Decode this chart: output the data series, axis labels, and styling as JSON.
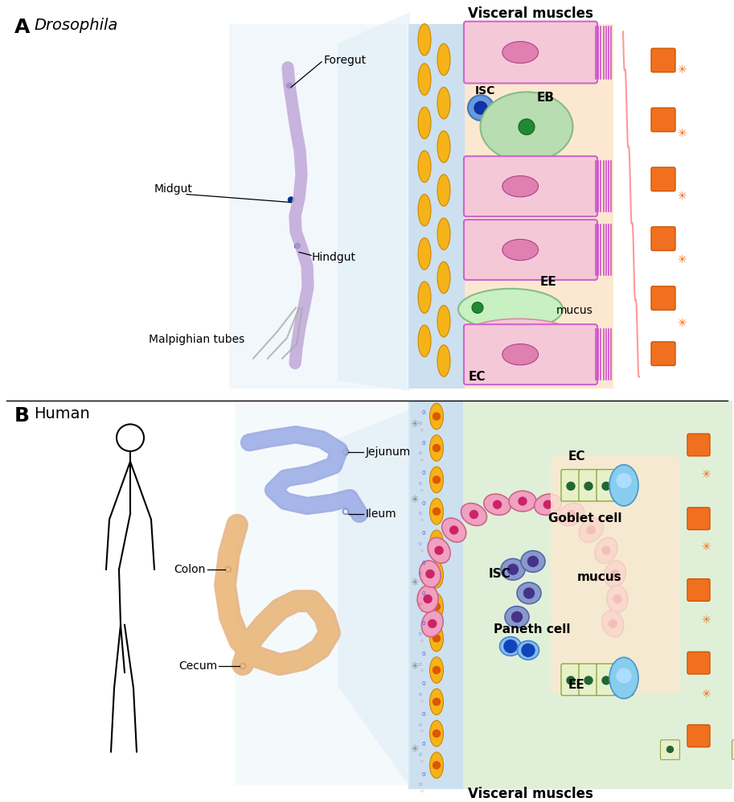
{
  "title_A": "Drosophila",
  "title_B": "Human",
  "label_A": "A",
  "label_B": "B",
  "foregut": "Foregut",
  "midgut": "Midgut",
  "hindgut": "Hindgut",
  "malpighian": "Malpighian tubes",
  "jejunum": "Jejunum",
  "colon": "Colon",
  "ileum": "Ileum",
  "cecum": "Cecum",
  "visceral_muscles": "Visceral muscles",
  "visceral_muscles_B": "Visceral muscles",
  "ISC_label": "ISC",
  "EB_label": "EB",
  "EE_label": "EE",
  "EC_label": "EC",
  "mucus_label_A": "mucus",
  "EC_label_B": "EC",
  "goblet_label": "Goblet cell",
  "ISC_label_B": "ISC",
  "mucus_label_B": "mucus",
  "paneth_label": "Paneth cell",
  "EE_label_B": "EE",
  "bg_muscle_A": "#cce0f0",
  "bg_mid_A": "#fce8d0",
  "bg_green_B": "#e0f0d8",
  "bg_muscle_B": "#cce0f0",
  "muscle_yellow": "#f5b319",
  "muscle_edge": "#cc8800",
  "cell_pink": "#f5c8d8",
  "cell_pink_edge": "#cc66cc",
  "cell_green": "#b8ddb0",
  "cell_green_edge": "#88bb88",
  "cell_blue": "#6699dd",
  "cell_blue_edge": "#4477bb",
  "nucleus_pink": "#e080b0",
  "nucleus_green_dark": "#228833",
  "nucleus_blue_dark": "#1133aa",
  "brush_color": "#cc44cc",
  "orange_cell": "#f07020",
  "orange_cell_edge": "#cc5500",
  "pink_wave": "#ff9999",
  "green_cell_fill": "#e8f0c8",
  "green_cell_edge": "#88aa44",
  "green_nucleus": "#226633",
  "crypt_pink": "#f0a0c0",
  "crypt_pink_edge": "#cc6688",
  "crypt_nucleus": "#cc2266",
  "isc_fill": "#8899cc",
  "isc_edge": "#5566aa",
  "isc_nucleus": "#443388",
  "paneth_fill": "#88bbee",
  "paneth_edge": "#4488cc",
  "paneth_nucleus": "#1144bb",
  "goblet_blue": "#88ccee",
  "goblet_blue_edge": "#4499cc",
  "gray_symbol": "#888888",
  "blue_dot": "#4444cc",
  "orange_dot": "#e05500",
  "label_dot_color": "#003388",
  "gut_color": "#c0a8d8",
  "fly_body": "#667788",
  "fly_body_edge": "#445566",
  "wing_fill": "#ddeeee",
  "wing_edge": "#aabbcc",
  "malpighian_color": "#aaaaaa",
  "trap_color": "#d8eaf5",
  "small_intestine_color": "#8899dd",
  "large_intestine_color": "#e0a060",
  "large_intestine_light": "#f0c080",
  "human_body_color": "black",
  "label_line_color": "black",
  "circle_edge": "#335599"
}
